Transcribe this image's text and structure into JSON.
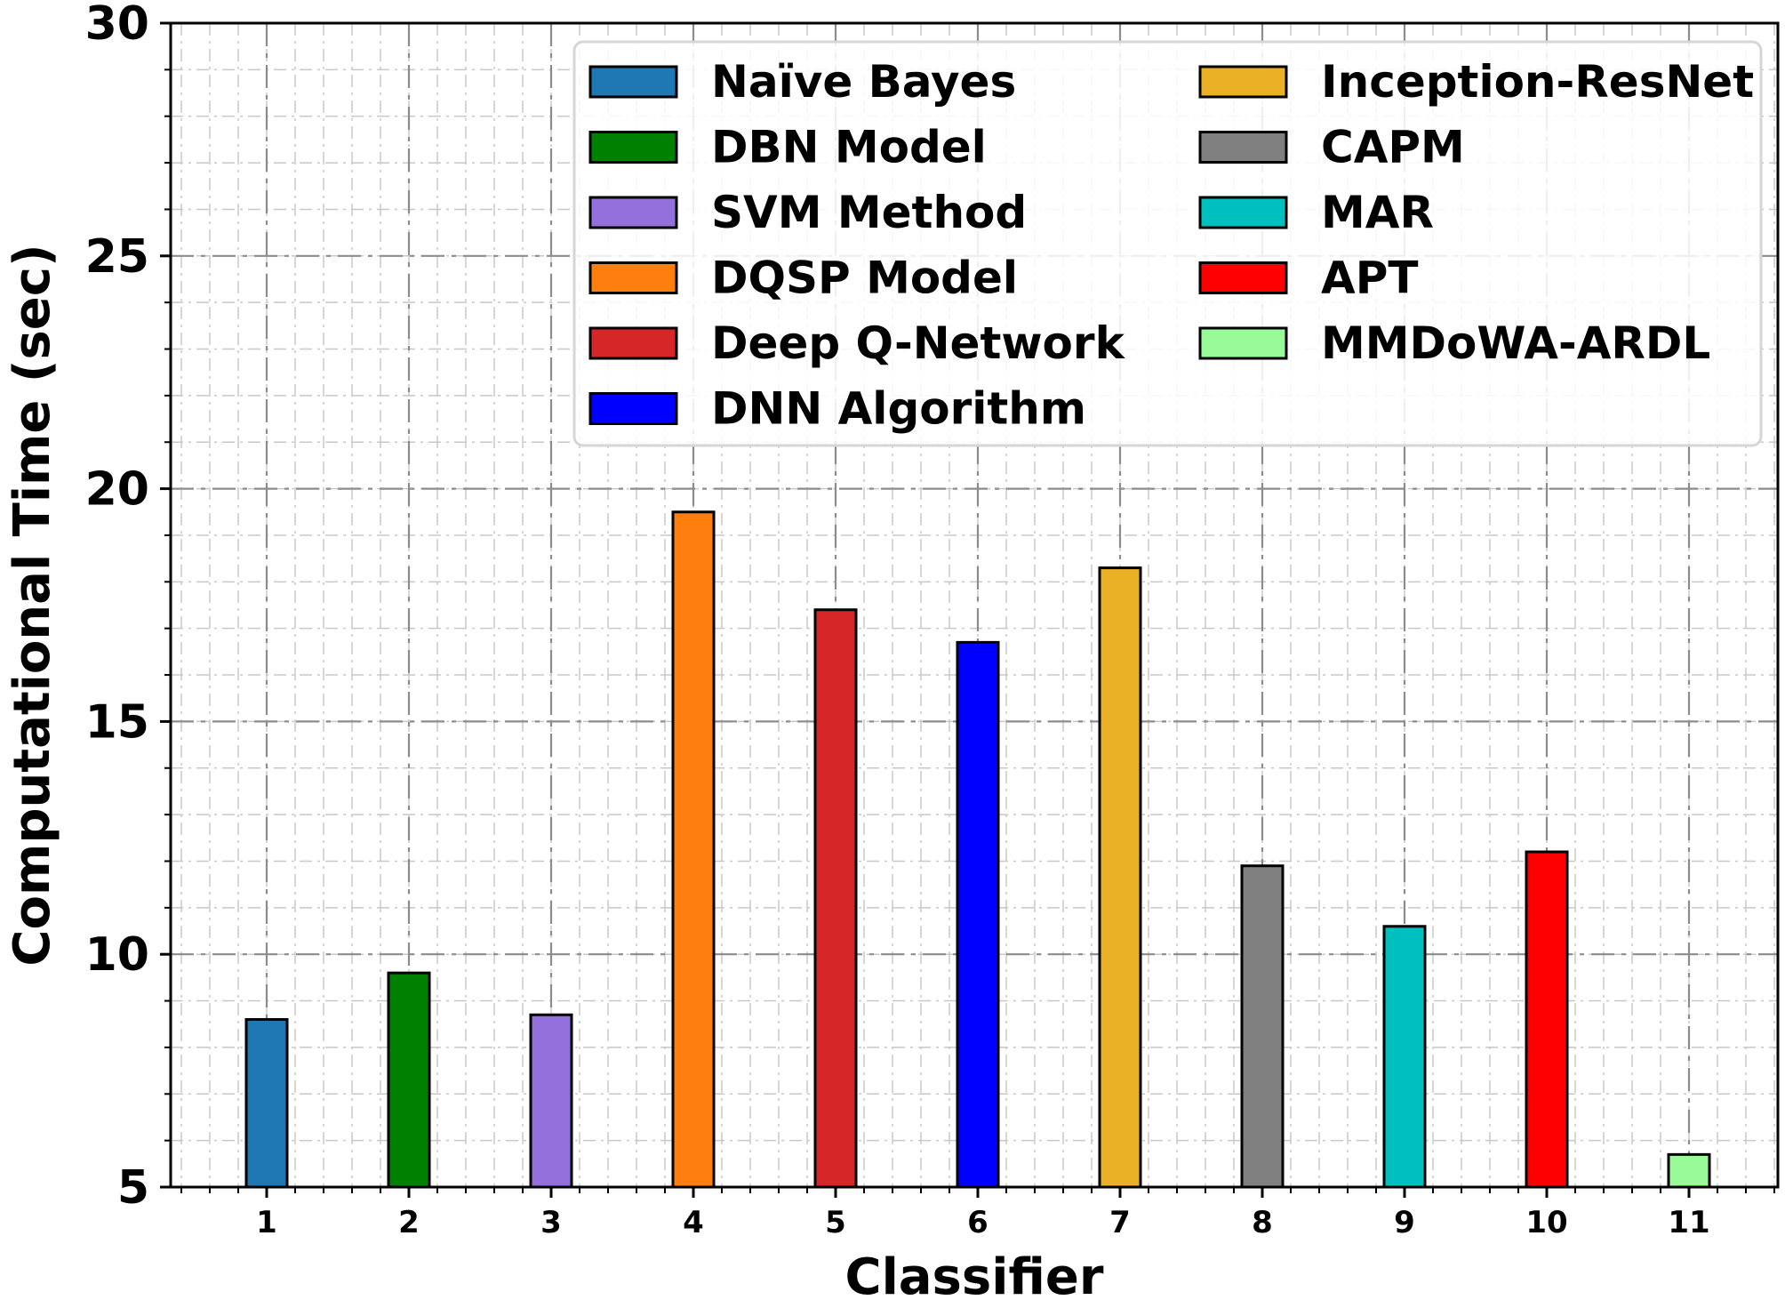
{
  "chart_data": {
    "type": "bar",
    "title": "",
    "xlabel": "Classifier",
    "ylabel": "Computational  Time (sec)",
    "categories": [
      "1",
      "2",
      "3",
      "4",
      "5",
      "6",
      "7",
      "8",
      "9",
      "10",
      "11"
    ],
    "yticks": [
      "5",
      "10",
      "15",
      "20",
      "25",
      "30"
    ],
    "ylim": [
      5,
      30
    ],
    "grid": true,
    "legend_position": "top-right",
    "series": [
      {
        "name": "Naïve Bayes",
        "category": "1",
        "value": 8.6,
        "color": "#1f77b4"
      },
      {
        "name": "DBN Model",
        "category": "2",
        "value": 9.6,
        "color": "#008000"
      },
      {
        "name": "SVM Method",
        "category": "3",
        "value": 8.7,
        "color": "#9370db"
      },
      {
        "name": "DQSP Model",
        "category": "4",
        "value": 19.5,
        "color": "#ff7f0e"
      },
      {
        "name": "Deep Q-Network",
        "category": "5",
        "value": 17.4,
        "color": "#d62728"
      },
      {
        "name": "DNN Algorithm",
        "category": "6",
        "value": 16.7,
        "color": "#0000ff"
      },
      {
        "name": "Inception-ResNet",
        "category": "7",
        "value": 18.3,
        "color": "#eab127"
      },
      {
        "name": "CAPM",
        "category": "8",
        "value": 11.9,
        "color": "#808080"
      },
      {
        "name": "MAR",
        "category": "9",
        "value": 10.6,
        "color": "#00bfbf"
      },
      {
        "name": "APT",
        "category": "10",
        "value": 12.2,
        "color": "#ff0000"
      },
      {
        "name": "MMDoWA-ARDL",
        "category": "11",
        "value": 5.7,
        "color": "#98fb98"
      }
    ]
  }
}
